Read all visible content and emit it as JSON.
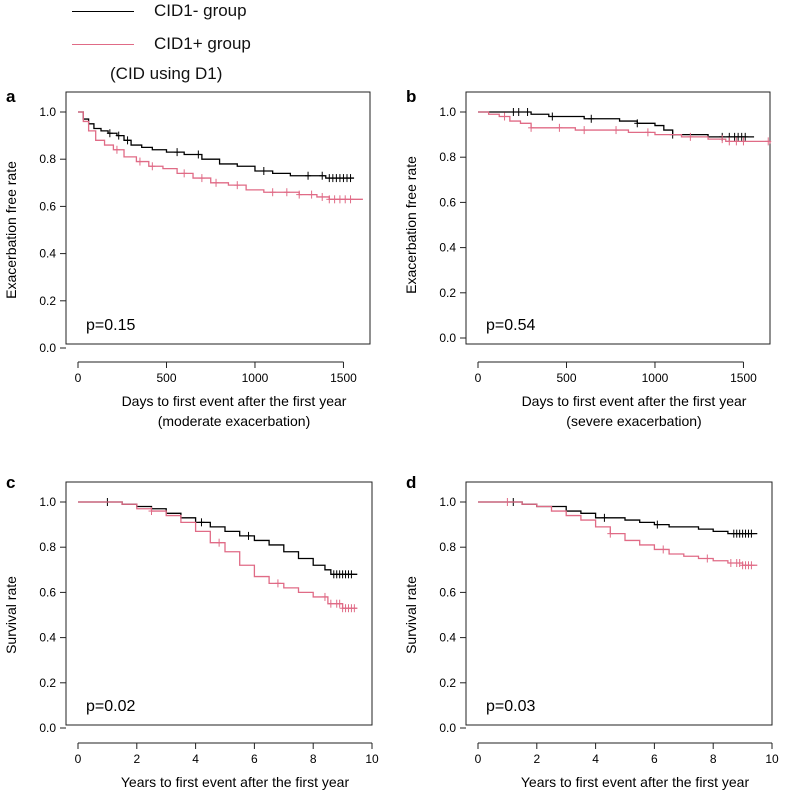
{
  "legend": {
    "items": [
      {
        "label": "CID1- group",
        "color": "#000000"
      },
      {
        "label": "CID1+ group",
        "color": "#e06b86"
      }
    ],
    "note": "(CID using D1)"
  },
  "chart_data": [
    {
      "panel_label": "a",
      "type": "line",
      "subtype": "kaplan-meier",
      "xlabel": "Days to first event after the first year",
      "xlabel2": "(moderate exacerbation)",
      "ylabel": "Exacerbation free rate",
      "xlim": [
        0,
        1650
      ],
      "ylim": [
        0,
        1.0
      ],
      "xticks": [
        0,
        500,
        1000,
        1500
      ],
      "yticks": [
        "0.0",
        "0.2",
        "0.4",
        "0.6",
        "0.8",
        "1.0"
      ],
      "p_value": "p=0.15",
      "series": [
        {
          "name": "CID1- group",
          "color": "#000000",
          "x": [
            0,
            30,
            60,
            90,
            130,
            170,
            220,
            260,
            300,
            360,
            420,
            500,
            600,
            700,
            800,
            900,
            1000,
            1100,
            1200,
            1300,
            1400,
            1460,
            1560
          ],
          "y": [
            1.0,
            0.97,
            0.95,
            0.93,
            0.92,
            0.91,
            0.9,
            0.88,
            0.86,
            0.85,
            0.84,
            0.83,
            0.82,
            0.8,
            0.78,
            0.77,
            0.75,
            0.74,
            0.73,
            0.73,
            0.72,
            0.72,
            0.72
          ],
          "censor_x": [
            180,
            230,
            280,
            560,
            680,
            1050,
            1300,
            1380,
            1420,
            1440,
            1460,
            1480,
            1500,
            1520,
            1540
          ]
        },
        {
          "name": "CID1+ group",
          "color": "#e06b86",
          "x": [
            0,
            30,
            60,
            100,
            150,
            200,
            260,
            330,
            400,
            480,
            560,
            650,
            750,
            850,
            950,
            1050,
            1150,
            1250,
            1350,
            1420,
            1500,
            1610
          ],
          "y": [
            1.0,
            0.96,
            0.92,
            0.88,
            0.86,
            0.84,
            0.81,
            0.79,
            0.77,
            0.76,
            0.74,
            0.72,
            0.7,
            0.69,
            0.67,
            0.66,
            0.66,
            0.65,
            0.64,
            0.63,
            0.63,
            0.63
          ],
          "censor_x": [
            220,
            350,
            420,
            600,
            700,
            780,
            900,
            1100,
            1180,
            1250,
            1320,
            1380,
            1420,
            1450,
            1480,
            1510,
            1540
          ]
        }
      ]
    },
    {
      "panel_label": "b",
      "type": "line",
      "subtype": "kaplan-meier",
      "xlabel": "Days to first event after the first year",
      "xlabel2": "(severe exacerbation)",
      "ylabel": "Exacerbation free rate",
      "xlim": [
        0,
        1650
      ],
      "ylim": [
        0,
        1.0
      ],
      "xticks": [
        0,
        500,
        1000,
        1500
      ],
      "yticks": [
        "0.0",
        "0.2",
        "0.4",
        "0.6",
        "0.8",
        "1.0"
      ],
      "p_value": "p=0.54",
      "series": [
        {
          "name": "CID1- group",
          "color": "#000000",
          "x": [
            0,
            200,
            300,
            400,
            600,
            800,
            900,
            1000,
            1050,
            1100,
            1200,
            1300,
            1400,
            1500,
            1560
          ],
          "y": [
            1.0,
            1.0,
            0.99,
            0.98,
            0.97,
            0.96,
            0.95,
            0.94,
            0.92,
            0.9,
            0.9,
            0.89,
            0.89,
            0.89,
            0.89
          ],
          "censor_x": [
            200,
            230,
            280,
            420,
            640,
            900,
            1100,
            1380,
            1420,
            1450,
            1470,
            1490,
            1510
          ]
        },
        {
          "name": "CID1+ group",
          "color": "#e06b86",
          "x": [
            0,
            60,
            120,
            180,
            240,
            300,
            400,
            550,
            700,
            850,
            1000,
            1150,
            1300,
            1400,
            1500,
            1650
          ],
          "y": [
            1.0,
            0.99,
            0.98,
            0.96,
            0.95,
            0.93,
            0.93,
            0.92,
            0.92,
            0.91,
            0.9,
            0.89,
            0.88,
            0.87,
            0.87,
            0.86
          ],
          "censor_x": [
            150,
            300,
            460,
            600,
            780,
            960,
            1200,
            1380,
            1420,
            1460,
            1500,
            1640
          ]
        }
      ]
    },
    {
      "panel_label": "c",
      "type": "line",
      "subtype": "kaplan-meier",
      "xlabel": "Years to first event after the first year",
      "xlabel2": "",
      "ylabel": "Survival rate",
      "xlim": [
        0,
        10
      ],
      "ylim": [
        0,
        1.0
      ],
      "xticks": [
        0,
        2,
        4,
        6,
        8,
        10
      ],
      "yticks": [
        "0.0",
        "0.2",
        "0.4",
        "0.6",
        "0.8",
        "1.0"
      ],
      "p_value": "p=0.02",
      "series": [
        {
          "name": "CID1- group",
          "color": "#000000",
          "x": [
            0,
            1,
            1.5,
            2,
            2.5,
            3,
            3.5,
            4,
            4.5,
            5,
            5.5,
            6,
            6.5,
            7,
            7.5,
            8,
            8.4,
            8.6,
            9,
            9.5
          ],
          "y": [
            1.0,
            1.0,
            0.99,
            0.98,
            0.97,
            0.95,
            0.93,
            0.91,
            0.89,
            0.87,
            0.85,
            0.83,
            0.81,
            0.78,
            0.75,
            0.72,
            0.7,
            0.68,
            0.68,
            0.68
          ],
          "censor_x": [
            1.0,
            4.2,
            5.8,
            8.7,
            8.8,
            8.9,
            9.0,
            9.1,
            9.2,
            9.3
          ]
        },
        {
          "name": "CID1+ group",
          "color": "#e06b86",
          "x": [
            0,
            1,
            1.5,
            2,
            2.5,
            3,
            3.5,
            4,
            4.5,
            5,
            5.5,
            6,
            6.5,
            7,
            7.5,
            8,
            8.5,
            9,
            9.5
          ],
          "y": [
            1.0,
            1.0,
            0.99,
            0.97,
            0.96,
            0.94,
            0.91,
            0.87,
            0.82,
            0.78,
            0.72,
            0.67,
            0.64,
            0.62,
            0.6,
            0.58,
            0.55,
            0.53,
            0.53
          ],
          "censor_x": [
            2.5,
            4.8,
            6.8,
            8.4,
            8.6,
            8.8,
            8.9,
            9.0,
            9.1,
            9.2,
            9.3,
            9.4
          ]
        }
      ]
    },
    {
      "panel_label": "d",
      "type": "line",
      "subtype": "kaplan-meier",
      "xlabel": "Years to first event after the first year",
      "xlabel2": "",
      "ylabel": "Survival rate",
      "xlim": [
        0,
        10
      ],
      "ylim": [
        0,
        1.0
      ],
      "xticks": [
        0,
        2,
        4,
        6,
        8,
        10
      ],
      "yticks": [
        "0.0",
        "0.2",
        "0.4",
        "0.6",
        "0.8",
        "1.0"
      ],
      "p_value": "p=0.03",
      "series": [
        {
          "name": "CID1- group",
          "color": "#000000",
          "x": [
            0,
            1,
            1.5,
            2,
            3,
            3.5,
            4,
            5,
            5.5,
            6,
            6.5,
            7,
            7.5,
            8,
            8.5,
            9,
            9.5
          ],
          "y": [
            1.0,
            1.0,
            0.99,
            0.98,
            0.96,
            0.95,
            0.93,
            0.92,
            0.91,
            0.9,
            0.89,
            0.89,
            0.88,
            0.87,
            0.86,
            0.86,
            0.86
          ],
          "censor_x": [
            1.2,
            4.3,
            6.1,
            8.7,
            8.8,
            8.9,
            9.0,
            9.1,
            9.2,
            9.3
          ]
        },
        {
          "name": "CID1+ group",
          "color": "#e06b86",
          "x": [
            0,
            1,
            1.5,
            2,
            2.5,
            3,
            3.5,
            4,
            4.5,
            5,
            5.5,
            6,
            6.5,
            7,
            7.5,
            8,
            8.5,
            9,
            9.5
          ],
          "y": [
            1.0,
            1.0,
            0.99,
            0.98,
            0.96,
            0.94,
            0.92,
            0.89,
            0.86,
            0.83,
            0.81,
            0.79,
            0.77,
            0.76,
            0.75,
            0.74,
            0.73,
            0.72,
            0.72
          ],
          "censor_x": [
            1.0,
            4.5,
            6.3,
            7.8,
            8.6,
            8.8,
            8.9,
            9.0,
            9.1,
            9.2,
            9.3
          ]
        }
      ]
    }
  ]
}
